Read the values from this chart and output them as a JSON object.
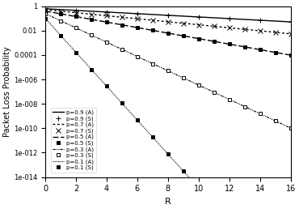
{
  "title": "",
  "xlabel": "R",
  "ylabel": "Packet Loss Probability",
  "xlim": [
    0,
    16
  ],
  "ylim": [
    1e-14,
    1.0
  ],
  "series": [
    {
      "label": "p=0.9 (A)",
      "p": 0.9,
      "linestyle": "solid",
      "marker": "none",
      "color": "black",
      "linewidth": 1.0,
      "type": "analysis",
      "P0": 0.62,
      "alpha": 0.155
    },
    {
      "label": "p=0.9 (S)",
      "p": 0.9,
      "linestyle": "none",
      "marker": "+",
      "color": "black",
      "markersize": 4,
      "markerfacecolor": "black",
      "type": "simulation",
      "P0": 0.62,
      "alpha": 0.155,
      "marker_step": 2
    },
    {
      "label": "p=0.7 (A)",
      "p": 0.7,
      "linestyle": "dotted",
      "marker": "none",
      "color": "black",
      "linewidth": 1.0,
      "type": "analysis",
      "P0": 0.52,
      "alpha": 0.285
    },
    {
      "label": "p=0.7 (S)",
      "p": 0.7,
      "linestyle": "none",
      "marker": "x",
      "color": "black",
      "markersize": 4,
      "markerfacecolor": "black",
      "type": "simulation",
      "P0": 0.52,
      "alpha": 0.285,
      "marker_step": 1
    },
    {
      "label": "p=0.5 (A)",
      "p": 0.5,
      "linestyle": "dashed",
      "marker": "none",
      "color": "black",
      "linewidth": 1.0,
      "type": "analysis",
      "P0": 0.4,
      "alpha": 0.52
    },
    {
      "label": "p=0.5 (S)",
      "p": 0.5,
      "linestyle": "none",
      "marker": "s",
      "color": "black",
      "markersize": 3,
      "markerfacecolor": "black",
      "type": "simulation",
      "P0": 0.4,
      "alpha": 0.52,
      "marker_step": 1
    },
    {
      "label": "p=0.3 (A)",
      "p": 0.3,
      "linestyle": "dashdot_fine",
      "marker": "none",
      "color": "black",
      "linewidth": 0.8,
      "type": "analysis",
      "P0": 0.25,
      "alpha": 1.35
    },
    {
      "label": "p=0.3 (S)",
      "p": 0.3,
      "linestyle": "none",
      "marker": "s",
      "color": "black",
      "markersize": 3,
      "markerfacecolor": "white",
      "type": "simulation",
      "P0": 0.25,
      "alpha": 1.35,
      "marker_step": 1
    },
    {
      "label": "p=0.1 (A)",
      "p": 0.1,
      "linestyle": "densely_dotted",
      "marker": "none",
      "color": "black",
      "linewidth": 0.8,
      "type": "analysis",
      "P0": 0.1,
      "alpha": 3.2
    },
    {
      "label": "p=0.1 (S)",
      "p": 0.1,
      "linestyle": "none",
      "marker": "s",
      "color": "black",
      "markersize": 3,
      "markerfacecolor": "black",
      "type": "simulation",
      "P0": 0.1,
      "alpha": 3.2,
      "marker_step": 1
    }
  ],
  "legend_entries": [
    {
      "label": "p=0.9 (A)",
      "linestyle": "solid",
      "marker": "none"
    },
    {
      "label": "p=0.9 (S)",
      "linestyle": "none",
      "marker": "+"
    },
    {
      "label": "p=0.7 (A)",
      "linestyle": "dotted",
      "marker": "none"
    },
    {
      "label": "p=0.7 (S)",
      "linestyle": "none",
      "marker": "x"
    },
    {
      "label": "p=0.5 (A)",
      "linestyle": "dashed",
      "marker": "none"
    },
    {
      "label": "p=0.5 (S)",
      "linestyle": "none",
      "marker": "s_filled"
    },
    {
      "label": "p=0.3 (A)",
      "linestyle": "dashdot_fine",
      "marker": "none"
    },
    {
      "label": "p=0.3 (S)",
      "linestyle": "none",
      "marker": "s_open"
    },
    {
      "label": "p=0.1 (A)",
      "linestyle": "densely_dotted",
      "marker": "none"
    },
    {
      "label": "p=0.1 (S)",
      "linestyle": "none",
      "marker": "s_small"
    }
  ]
}
